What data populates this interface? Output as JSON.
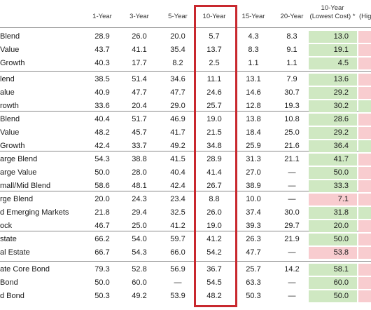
{
  "columns": {
    "y1": "1-Year",
    "y3": "3-Year",
    "y5": "5-Year",
    "y10": "10-Year",
    "y15": "15-Year",
    "y20": "20-Year",
    "lc_line1": "10-Year",
    "lc_line2": "(Lowest Cost) *",
    "hc_line1": "(Hig"
  },
  "colors": {
    "green": "#cfe8c2",
    "pink": "#f8cccf",
    "highlight": "#c8282e"
  },
  "rows": [
    {
      "label": "Blend",
      "y1": "28.9",
      "y3": "26.0",
      "y5": "20.0",
      "y10": "5.7",
      "y15": "4.3",
      "y20": "8.3",
      "lc": "13.0",
      "lc_color": "green"
    },
    {
      "label": "Value",
      "y1": "43.7",
      "y3": "41.1",
      "y5": "35.4",
      "y10": "13.7",
      "y15": "8.3",
      "y20": "9.1",
      "lc": "19.1",
      "lc_color": "green"
    },
    {
      "label": "Growth",
      "y1": "40.3",
      "y3": "17.7",
      "y5": "8.2",
      "y10": "2.5",
      "y15": "1.1",
      "y20": "1.1",
      "lc": "4.5",
      "lc_color": "green"
    },
    {
      "label": "lend",
      "y1": "38.5",
      "y3": "51.4",
      "y5": "34.6",
      "y10": "11.1",
      "y15": "13.1",
      "y20": "7.9",
      "lc": "13.6",
      "lc_color": "green"
    },
    {
      "label": "alue",
      "y1": "40.9",
      "y3": "47.7",
      "y5": "47.7",
      "y10": "24.6",
      "y15": "14.6",
      "y20": "30.7",
      "lc": "29.2",
      "lc_color": "green"
    },
    {
      "label": "rowth",
      "y1": "33.6",
      "y3": "20.4",
      "y5": "29.0",
      "y10": "25.7",
      "y15": "12.8",
      "y20": "19.3",
      "lc": "30.2",
      "lc_color": "green"
    },
    {
      "label": "Blend",
      "y1": "40.4",
      "y3": "51.7",
      "y5": "46.9",
      "y10": "19.0",
      "y15": "13.8",
      "y20": "10.8",
      "lc": "28.6",
      "lc_color": "green"
    },
    {
      "label": "Value",
      "y1": "48.2",
      "y3": "45.7",
      "y5": "41.7",
      "y10": "21.5",
      "y15": "18.4",
      "y20": "25.0",
      "lc": "29.2",
      "lc_color": "green"
    },
    {
      "label": "Growth",
      "y1": "42.4",
      "y3": "33.7",
      "y5": "49.2",
      "y10": "34.8",
      "y15": "25.9",
      "y20": "21.6",
      "lc": "36.4",
      "lc_color": "green"
    },
    {
      "label": "arge Blend",
      "y1": "54.3",
      "y3": "38.8",
      "y5": "41.5",
      "y10": "28.9",
      "y15": "31.3",
      "y20": "21.1",
      "lc": "41.7",
      "lc_color": "green"
    },
    {
      "label": "arge Value",
      "y1": "50.0",
      "y3": "28.0",
      "y5": "40.4",
      "y10": "41.4",
      "y15": "27.0",
      "y20": "—",
      "lc": "50.0",
      "lc_color": "green"
    },
    {
      "label": "mall/Mid Blend",
      "y1": "58.6",
      "y3": "48.1",
      "y5": "42.4",
      "y10": "26.7",
      "y15": "38.9",
      "y20": "—",
      "lc": "33.3",
      "lc_color": "green"
    },
    {
      "label": "rge Blend",
      "y1": "20.0",
      "y3": "24.3",
      "y5": "23.4",
      "y10": "8.8",
      "y15": "10.0",
      "y20": "—",
      "lc": "7.1",
      "lc_color": "pink"
    },
    {
      "label": "d Emerging Markets",
      "y1": "21.8",
      "y3": "29.4",
      "y5": "32.5",
      "y10": "26.0",
      "y15": "37.4",
      "y20": "30.0",
      "lc": "31.8",
      "lc_color": "green"
    },
    {
      "label": "ock",
      "y1": "46.7",
      "y3": "25.0",
      "y5": "41.2",
      "y10": "19.0",
      "y15": "39.3",
      "y20": "29.7",
      "lc": "20.0",
      "lc_color": "green"
    },
    {
      "label": "state",
      "y1": "66.2",
      "y3": "54.0",
      "y5": "59.7",
      "y10": "41.2",
      "y15": "26.3",
      "y20": "21.9",
      "lc": "50.0",
      "lc_color": "green"
    },
    {
      "label": "al Estate",
      "y1": "66.7",
      "y3": "54.3",
      "y5": "66.0",
      "y10": "54.2",
      "y15": "47.7",
      "y20": "—",
      "lc": "53.8",
      "lc_color": "pink"
    },
    {
      "label": "ate Core Bond",
      "y1": "79.3",
      "y3": "52.8",
      "y5": "56.9",
      "y10": "36.7",
      "y15": "25.7",
      "y20": "14.2",
      "lc": "58.1",
      "lc_color": "green"
    },
    {
      "label": "Bond",
      "y1": "50.0",
      "y3": "60.0",
      "y5": "—",
      "y10": "54.5",
      "y15": "63.3",
      "y20": "—",
      "lc": "60.0",
      "lc_color": "green"
    },
    {
      "label": "d Bond",
      "y1": "50.3",
      "y3": "49.2",
      "y5": "53.9",
      "y10": "48.2",
      "y15": "50.3",
      "y20": "—",
      "lc": "50.0",
      "lc_color": "green"
    }
  ],
  "right_clip_colors": [
    "pink",
    "pink",
    "pink",
    "pink",
    "pink",
    "green",
    "pink",
    "pink",
    "green",
    "pink",
    "pink",
    "pink",
    "pink",
    "green",
    "pink",
    "pink",
    "pink",
    "pink",
    "pink",
    "pink"
  ]
}
